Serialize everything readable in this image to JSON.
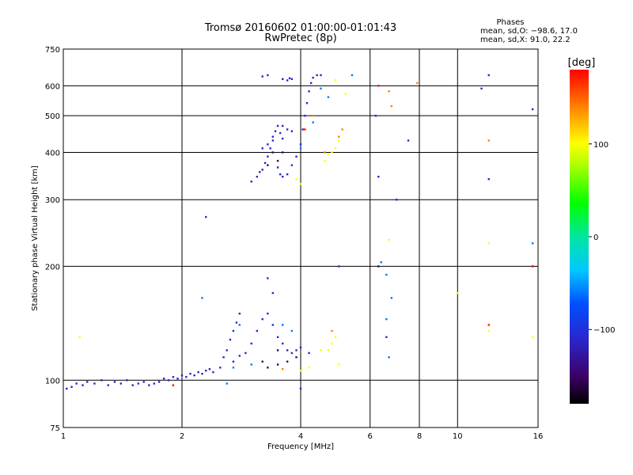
{
  "chart_data": {
    "type": "scatter",
    "title": "Tromsø 20160602 01:00:00-01:01:43",
    "subtitle": "RwPretec (8p)",
    "xlabel": "Frequency [MHz]",
    "ylabel": "Stationary phase Virtual Height [km]",
    "x_scale": "log",
    "y_scale": "log",
    "xlim": [
      1,
      16
    ],
    "ylim": [
      75,
      750
    ],
    "x_ticks": [
      1,
      2,
      4,
      6,
      8,
      10,
      16
    ],
    "x_tick_labels": [
      "1",
      "2",
      "4",
      "6",
      "8",
      "10",
      "16"
    ],
    "y_ticks": [
      75,
      100,
      200,
      300,
      400,
      500,
      600,
      750
    ],
    "y_tick_labels": [
      "75",
      "100",
      "200",
      "300",
      "400",
      "500",
      "600",
      "750"
    ],
    "x_gridlines": [
      2,
      4,
      6,
      8,
      10
    ],
    "y_gridlines": [
      100,
      200,
      300,
      400,
      500,
      600
    ],
    "grid": true,
    "phase_legend": {
      "title": "Phases",
      "line1": "mean, sd,O: −98.6, 17.0",
      "line2": "mean, sd,X:  91.0, 22.2"
    },
    "colorbar": {
      "label": "[deg]",
      "range": [
        -180,
        180
      ],
      "ticks": [
        100,
        0,
        -100
      ],
      "tick_labels": [
        "100",
        "0",
        "−100"
      ],
      "colormap": "rainbow"
    },
    "series": [
      {
        "color_deg": -110,
        "points": [
          [
            1.02,
            95
          ],
          [
            1.05,
            96
          ],
          [
            1.08,
            98
          ],
          [
            1.12,
            97
          ],
          [
            1.15,
            99
          ],
          [
            1.2,
            98
          ],
          [
            1.25,
            100
          ],
          [
            1.3,
            97
          ],
          [
            1.35,
            99
          ],
          [
            1.4,
            98
          ],
          [
            1.45,
            100
          ],
          [
            1.5,
            97
          ],
          [
            1.55,
            98
          ],
          [
            1.6,
            99
          ],
          [
            1.65,
            97
          ],
          [
            1.7,
            98
          ],
          [
            1.75,
            99
          ],
          [
            1.8,
            101
          ],
          [
            1.85,
            100
          ],
          [
            1.9,
            102
          ],
          [
            1.95,
            101
          ],
          [
            2.0,
            103
          ],
          [
            2.05,
            102
          ],
          [
            2.1,
            104
          ],
          [
            2.15,
            103
          ],
          [
            2.2,
            105
          ],
          [
            2.25,
            104
          ],
          [
            2.3,
            106
          ],
          [
            2.35,
            107
          ],
          [
            2.4,
            105
          ],
          [
            2.5,
            108
          ],
          [
            2.55,
            115
          ],
          [
            2.6,
            120
          ],
          [
            2.65,
            128
          ],
          [
            2.7,
            135
          ],
          [
            2.75,
            142
          ],
          [
            2.8,
            150
          ],
          [
            2.7,
            112
          ],
          [
            2.8,
            116
          ],
          [
            2.9,
            118
          ],
          [
            3.0,
            125
          ],
          [
            3.1,
            135
          ],
          [
            3.2,
            145
          ],
          [
            3.3,
            150
          ],
          [
            3.4,
            140
          ],
          [
            3.5,
            130
          ],
          [
            3.6,
            125
          ],
          [
            3.7,
            120
          ],
          [
            3.8,
            118
          ],
          [
            3.9,
            120
          ],
          [
            4.0,
            122
          ],
          [
            3.3,
            186
          ],
          [
            3.4,
            170
          ],
          [
            2.3,
            270
          ],
          [
            3.0,
            335
          ],
          [
            3.1,
            345
          ],
          [
            3.15,
            355
          ],
          [
            3.2,
            360
          ],
          [
            3.25,
            375
          ],
          [
            3.3,
            390
          ],
          [
            3.35,
            410
          ],
          [
            3.4,
            430
          ],
          [
            3.45,
            455
          ],
          [
            3.5,
            470
          ],
          [
            3.55,
            450
          ],
          [
            3.6,
            435
          ],
          [
            3.2,
            410
          ],
          [
            3.3,
            420
          ],
          [
            3.4,
            440
          ],
          [
            3.5,
            365
          ],
          [
            3.55,
            350
          ],
          [
            3.6,
            345
          ],
          [
            3.7,
            350
          ],
          [
            3.8,
            370
          ],
          [
            3.9,
            390
          ],
          [
            4.0,
            420
          ],
          [
            4.05,
            460
          ],
          [
            4.1,
            500
          ],
          [
            4.15,
            540
          ],
          [
            4.2,
            580
          ],
          [
            4.25,
            610
          ],
          [
            4.3,
            630
          ],
          [
            4.4,
            640
          ],
          [
            4.5,
            640
          ],
          [
            3.6,
            625
          ],
          [
            3.7,
            620
          ],
          [
            3.75,
            628
          ],
          [
            3.8,
            625
          ],
          [
            3.2,
            635
          ],
          [
            3.3,
            640
          ],
          [
            3.6,
            470
          ],
          [
            3.7,
            460
          ],
          [
            3.8,
            455
          ],
          [
            4.0,
            95
          ],
          [
            4.2,
            118
          ],
          [
            6.2,
            500
          ],
          [
            6.3,
            345
          ],
          [
            7.0,
            300
          ],
          [
            7.5,
            430
          ],
          [
            12.0,
            640
          ],
          [
            11.5,
            590
          ],
          [
            12.0,
            340
          ],
          [
            15.5,
            520
          ],
          [
            5.0,
            200
          ],
          [
            6.6,
            130
          ]
        ]
      },
      {
        "color_deg": -150,
        "points": [
          [
            3.3,
            108
          ],
          [
            3.5,
            110
          ],
          [
            3.7,
            112
          ],
          [
            3.5,
            120
          ],
          [
            3.3,
            370
          ],
          [
            3.5,
            380
          ],
          [
            3.4,
            400
          ],
          [
            3.6,
            400
          ],
          [
            3.9,
            115
          ],
          [
            3.2,
            112
          ],
          [
            15.5,
            200
          ],
          [
            6.3,
            200
          ]
        ]
      },
      {
        "color_deg": -60,
        "points": [
          [
            2.6,
            98
          ],
          [
            2.7,
            108
          ],
          [
            2.8,
            140
          ],
          [
            3.0,
            110
          ],
          [
            3.6,
            140
          ],
          [
            4.0,
            410
          ],
          [
            4.3,
            480
          ],
          [
            4.5,
            590
          ],
          [
            4.7,
            560
          ],
          [
            5.4,
            640
          ],
          [
            6.4,
            205
          ],
          [
            6.6,
            190
          ],
          [
            6.8,
            165
          ],
          [
            6.6,
            145
          ],
          [
            6.7,
            115
          ],
          [
            2.25,
            165
          ],
          [
            3.8,
            135
          ],
          [
            15.5,
            230
          ]
        ]
      },
      {
        "color_deg": 100,
        "points": [
          [
            4.6,
            380
          ],
          [
            4.7,
            395
          ],
          [
            4.8,
            400
          ],
          [
            4.9,
            410
          ],
          [
            5.0,
            430
          ],
          [
            4.7,
            120
          ],
          [
            4.8,
            125
          ],
          [
            4.9,
            130
          ],
          [
            4.5,
            120
          ],
          [
            4.2,
            108
          ],
          [
            4.0,
            106
          ],
          [
            5.0,
            110
          ],
          [
            6.7,
            235
          ],
          [
            10.0,
            170
          ],
          [
            12.0,
            230
          ],
          [
            12.0,
            135
          ],
          [
            1.1,
            130
          ],
          [
            4.0,
            330
          ],
          [
            3.9,
            340
          ],
          [
            5.2,
            570
          ],
          [
            4.9,
            620
          ],
          [
            15.5,
            130
          ]
        ]
      },
      {
        "color_deg": 140,
        "points": [
          [
            5.0,
            440
          ],
          [
            5.1,
            460
          ],
          [
            4.6,
            400
          ],
          [
            4.8,
            135
          ],
          [
            6.7,
            580
          ],
          [
            6.8,
            530
          ],
          [
            7.9,
            610
          ],
          [
            12.0,
            430
          ],
          [
            4.3,
            500
          ],
          [
            3.6,
            107
          ]
        ]
      },
      {
        "color_deg": 175,
        "points": [
          [
            15.5,
            200
          ],
          [
            1.9,
            97
          ],
          [
            4.1,
            460
          ],
          [
            6.3,
            600
          ],
          [
            12.0,
            140
          ]
        ]
      }
    ]
  }
}
